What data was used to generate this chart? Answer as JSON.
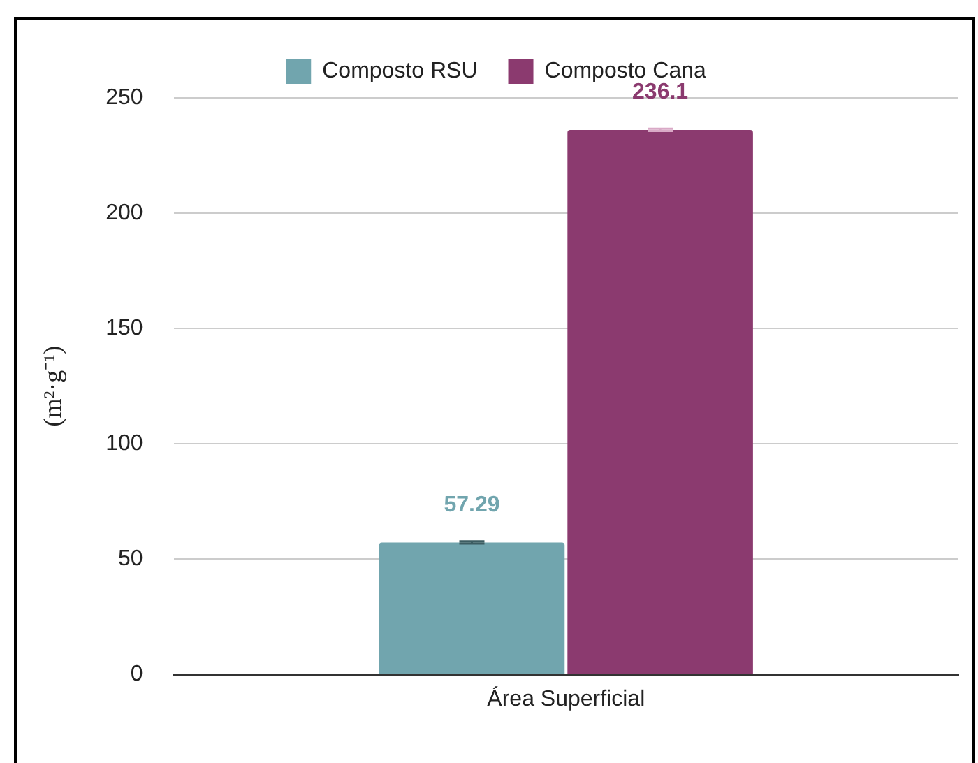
{
  "chart_data": {
    "type": "bar",
    "ylabel": "(m²·g⁻¹)",
    "categories": [
      "Área Superficial"
    ],
    "series": [
      {
        "name": "Composto RSU",
        "color": "#71a5ae",
        "values": [
          57.29
        ],
        "errors": [
          0.5
        ]
      },
      {
        "name": "Composto Cana",
        "color": "#8b3a6f",
        "values": [
          236.1
        ],
        "errors": [
          0.5
        ]
      }
    ],
    "ylim": [
      0,
      250
    ],
    "yticks": [
      0,
      50,
      100,
      150,
      200,
      250
    ],
    "grid": "y",
    "legend": "top",
    "data_labels": true
  }
}
